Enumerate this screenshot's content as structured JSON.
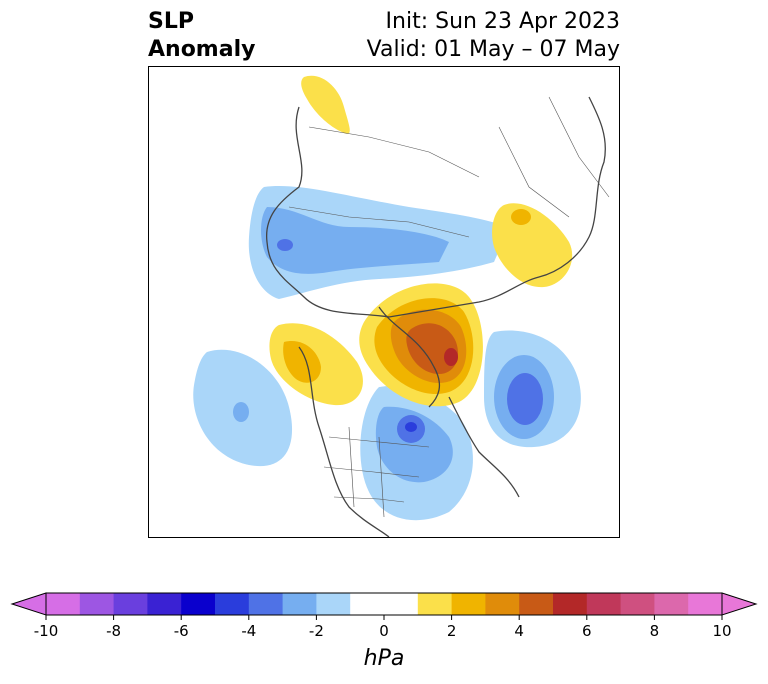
{
  "title": {
    "left_line1": "SLP",
    "left_line2": "Anomaly",
    "right_line1": "Init: Sun 23 Apr 2023",
    "right_line2": "Valid: 01 May – 07 May"
  },
  "colorbar": {
    "label": "hPa",
    "ticks": [
      "-10",
      "-8",
      "-6",
      "-4",
      "-2",
      "0",
      "2",
      "4",
      "6",
      "8",
      "10"
    ],
    "tick_values": [
      -10,
      -8,
      -6,
      -4,
      -2,
      0,
      2,
      4,
      6,
      8,
      10
    ],
    "colors": [
      "#d66ee6",
      "#9d56e3",
      "#6a3fde",
      "#3a22d3",
      "#0a00cd",
      "#2a3ddc",
      "#4f72e6",
      "#76aef0",
      "#aad6f9",
      "#ffffff",
      "#fbe04a",
      "#f0b400",
      "#e08c0a",
      "#c85a16",
      "#b32828",
      "#c0385a",
      "#cf5080",
      "#dc68ac",
      "#e877d8"
    ],
    "bounds": [
      -10,
      -9,
      -8,
      -7,
      -6,
      -5,
      -4,
      -3,
      -2,
      -1,
      1,
      2,
      3,
      4,
      5,
      6,
      7,
      8,
      9,
      10
    ]
  },
  "map": {
    "features": [
      {
        "name": "greenland-high",
        "kind": "positive",
        "peak": "7"
      },
      {
        "name": "alaska-high",
        "kind": "positive",
        "peak": "3"
      },
      {
        "name": "scandinavia-high",
        "kind": "positive",
        "peak": "2"
      },
      {
        "name": "europe-high",
        "kind": "positive",
        "peak": "2"
      },
      {
        "name": "eastern-canada-low",
        "kind": "negative",
        "peak": "-5"
      },
      {
        "name": "north-atlantic-low",
        "kind": "negative",
        "peak": "-5"
      },
      {
        "name": "north-pacific-low",
        "kind": "negative",
        "peak": "-3"
      },
      {
        "name": "siberia-low",
        "kind": "negative",
        "peak": "-4"
      }
    ]
  }
}
